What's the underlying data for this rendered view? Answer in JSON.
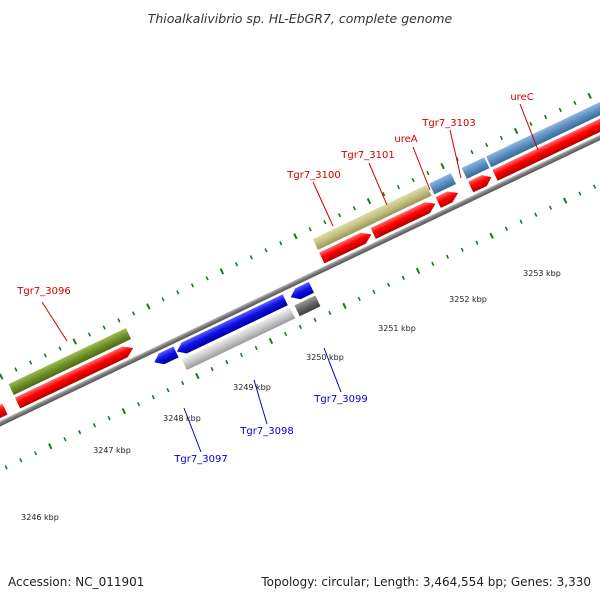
{
  "title": "Thioalkalivibrio sp. HL-EbGR7, complete genome",
  "footer": {
    "accession": "Accession: NC_011901",
    "topology": "Topology: circular; Length: 3,464,554 bp; Genes: 3,330"
  },
  "colors": {
    "forward_cds": "#ff0000",
    "reverse_cds": "#1010e8",
    "rna": "#5a8fc0",
    "forward_gene": "#c2bf7e",
    "olive_gene": "#6f8f28",
    "reverse_gene_light": "#c8c8c8",
    "reverse_gene_dark": "#666666",
    "label_forward": "#cc0000",
    "label_reverse": "#0000cc",
    "tick": "#1a7a1a",
    "backbone": "#888888"
  },
  "kbp_labels": [
    {
      "id": "k3246",
      "text": "3246 kbp"
    },
    {
      "id": "k3247",
      "text": "3247 kbp"
    },
    {
      "id": "k3248",
      "text": "3248 kbp"
    },
    {
      "id": "k3249",
      "text": "3249 kbp"
    },
    {
      "id": "k3250",
      "text": "3250 kbp"
    },
    {
      "id": "k3251",
      "text": "3251 kbp"
    },
    {
      "id": "k3252",
      "text": "3252 kbp"
    },
    {
      "id": "k3253",
      "text": "3253 kbp"
    }
  ],
  "gene_labels": {
    "forward": [
      {
        "id": "tgr7-3096",
        "text": "Tgr7_3096"
      },
      {
        "id": "tgr7-3100",
        "text": "Tgr7_3100"
      },
      {
        "id": "tgr7-3101",
        "text": "Tgr7_3101"
      },
      {
        "id": "urea",
        "text": "ureA"
      },
      {
        "id": "tgr7-3103",
        "text": "Tgr7_3103"
      },
      {
        "id": "urec",
        "text": "ureC"
      }
    ],
    "reverse": [
      {
        "id": "tgr7-3097",
        "text": "Tgr7_3097"
      },
      {
        "id": "tgr7-3098",
        "text": "Tgr7_3098"
      },
      {
        "id": "tgr7-3099",
        "text": "Tgr7_3099"
      }
    ]
  }
}
